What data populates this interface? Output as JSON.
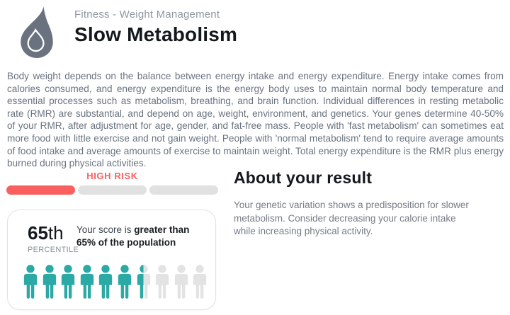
{
  "header": {
    "category": "Fitness - Weight Management",
    "title": "Slow Metabolism",
    "icon": "flame-icon",
    "icon_color": "#6A7280"
  },
  "description": "Body weight depends on the balance between energy intake and energy expenditure. Energy intake comes from calories consumed, and energy expenditure is the energy body uses to maintain normal body temperature and essential processes such as metabolism, breathing, and brain function. Individual differences in resting metabolic rate (RMR) are substantial, and depend on age, weight, environment, and genetics. Your genes determine 40-50% of your RMR, after adjustment for age, gender, and fat-free mass. People with 'fast metabolism' can sometimes eat more food with little exercise and not gain weight. People with 'normal metabolism' tend to require average amounts of food intake and average amounts of exercise to maintain weight. Total energy expenditure is the RMR plus energy burned during physical activities.",
  "risk": {
    "label": "HIGH RISK",
    "level": 1,
    "segments": 3,
    "color": "#F95F5F",
    "track_color": "#E1E1E1"
  },
  "percentile_card": {
    "value": "65",
    "suffix": "th",
    "caption": "PERCENTILE",
    "score_text_regular": "Your score is ",
    "score_text_bold": "greater than 65% of the population",
    "people_total": 10,
    "people_filled": 6.5,
    "filled_color": "#2BA9A5",
    "empty_color": "#E3E3E3"
  },
  "about": {
    "heading": "About your result",
    "body": "Your genetic variation shows a predisposition for slower metabolism. Consider decreasing your calorie intake while increasing physical activity."
  }
}
